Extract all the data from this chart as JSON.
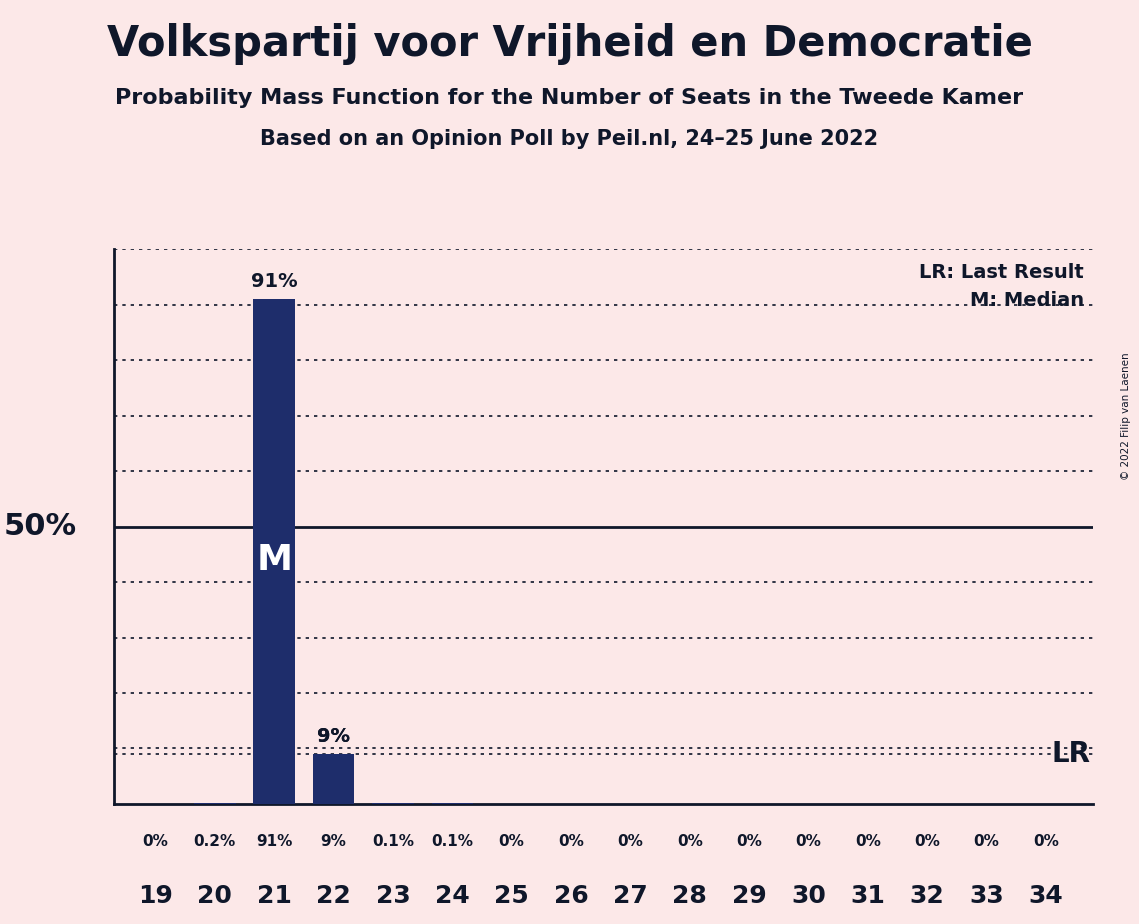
{
  "title": "Volkspartij voor Vrijheid en Democratie",
  "subtitle1": "Probability Mass Function for the Number of Seats in the Tweede Kamer",
  "subtitle2": "Based on an Opinion Poll by Peil.nl, 24–25 June 2022",
  "copyright": "© 2022 Filip van Laenen",
  "seats": [
    19,
    20,
    21,
    22,
    23,
    24,
    25,
    26,
    27,
    28,
    29,
    30,
    31,
    32,
    33,
    34
  ],
  "probabilities": [
    0.0,
    0.2,
    91.0,
    9.0,
    0.1,
    0.1,
    0.0,
    0.0,
    0.0,
    0.0,
    0.0,
    0.0,
    0.0,
    0.0,
    0.0,
    0.0
  ],
  "prob_labels": [
    "0%",
    "0.2%",
    "91%",
    "9%",
    "0.1%",
    "0.1%",
    "0%",
    "0%",
    "0%",
    "0%",
    "0%",
    "0%",
    "0%",
    "0%",
    "0%",
    "0%"
  ],
  "bar_color": "#1e2d6b",
  "background_color": "#fce8e8",
  "median_seat": 21,
  "lr_seat": 22,
  "lr_level": 9.0,
  "ylim": [
    0,
    100
  ],
  "ylabel_50_text": "50%",
  "legend_lr": "LR: Last Result",
  "legend_m": "M: Median",
  "dotted_grid_levels": [
    10,
    20,
    30,
    40,
    60,
    70,
    80,
    90,
    100
  ],
  "lr_dotted_level": 9.0,
  "solid_line_level": 50
}
